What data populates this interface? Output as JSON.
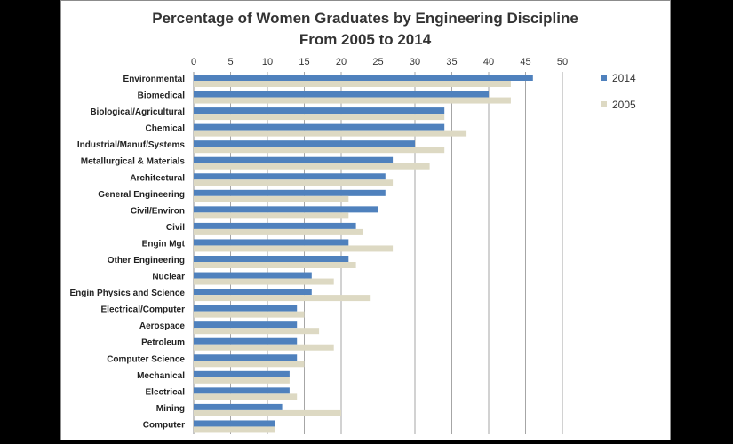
{
  "chart_data": {
    "type": "bar",
    "orientation": "horizontal",
    "title_line1": "Percentage of Women Graduates by Engineering Discipline",
    "title_line2": "From 2005 to 2014",
    "xlim": [
      0,
      50
    ],
    "xticks": [
      "0",
      "5",
      "10",
      "15",
      "20",
      "25",
      "30",
      "35",
      "40",
      "45",
      "50"
    ],
    "grid": true,
    "legend_position": "right",
    "categories": [
      "Environmental",
      "Biomedical",
      "Biological/Agricultural",
      "Chemical",
      "Industrial/Manuf/Systems",
      "Metallurgical & Materials",
      "Architectural",
      "General Engineering",
      "Civil/Environ",
      "Civil",
      "Engin Mgt",
      "Other Engineering",
      "Nuclear",
      "Engin Physics and Science",
      "Electrical/Computer",
      "Aerospace",
      "Petroleum",
      "Computer Science",
      "Mechanical",
      "Electrical",
      "Mining",
      "Computer"
    ],
    "series": [
      {
        "name": "2014",
        "color": "#4F81BD",
        "values": [
          46,
          40,
          34,
          34,
          30,
          27,
          26,
          26,
          25,
          22,
          21,
          21,
          16,
          16,
          14,
          14,
          14,
          14,
          13,
          13,
          12,
          11
        ]
      },
      {
        "name": "2005",
        "color": "#DDD9C3",
        "values": [
          43,
          43,
          34,
          37,
          34,
          32,
          27,
          21,
          21,
          23,
          27,
          22,
          19,
          24,
          15,
          17,
          19,
          15,
          13,
          14,
          20,
          11
        ]
      }
    ]
  }
}
